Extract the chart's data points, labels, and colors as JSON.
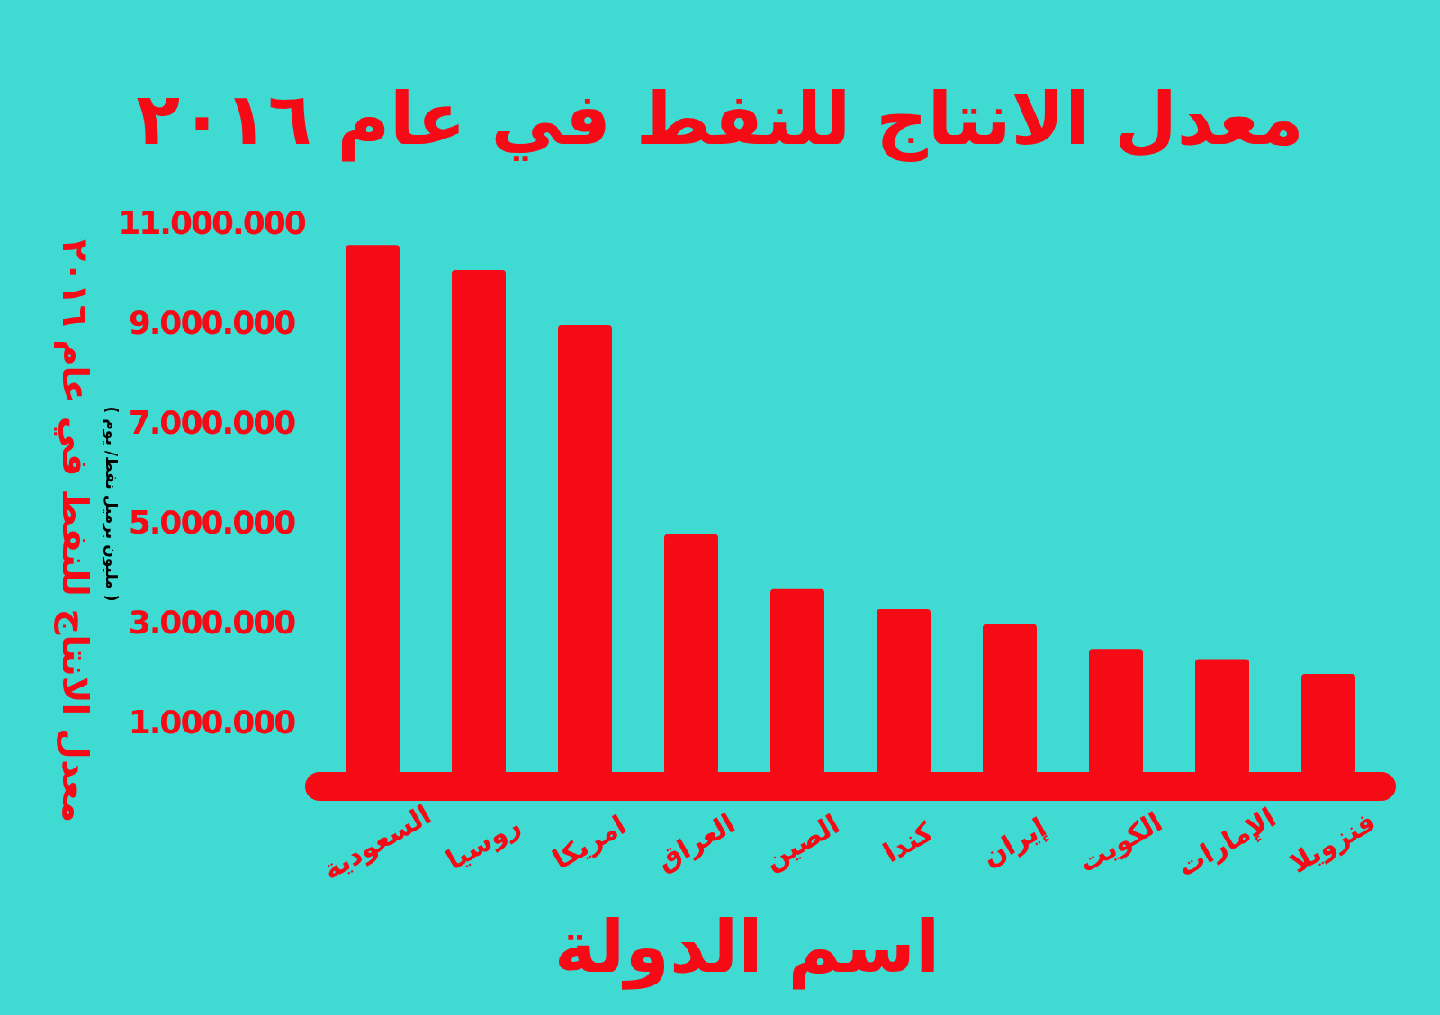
{
  "chart_data": {
    "type": "bar",
    "title": "معدل الانتاج للنفط في عام ٢٠١٦",
    "xlabel": "اسم الدولة",
    "ylabel": "معدل الانتاج للنفط في عام ٢٠١٦",
    "annotations": [
      "( مليون برميل نفط/ يوم )"
    ],
    "categories": [
      "السعودية",
      "روسيا",
      "امريكا",
      "العراق",
      "الصين",
      "كندا",
      "إيران",
      "الكويت",
      "الإمارات",
      "فنزويلا"
    ],
    "values": [
      10600000,
      10100000,
      9000000,
      4800000,
      3700000,
      3300000,
      3000000,
      2500000,
      2300000,
      2000000
    ],
    "color": "#f50a16",
    "ylim": [
      0,
      11000000
    ],
    "yticks": [
      {
        "value": 1000000,
        "label": "1.000.000"
      },
      {
        "value": 3000000,
        "label": "3.000.000"
      },
      {
        "value": 5000000,
        "label": "5.000.000"
      },
      {
        "value": 7000000,
        "label": "7.000.000"
      },
      {
        "value": 9000000,
        "label": "9.000.000"
      },
      {
        "value": 11000000,
        "label": "11.000.000"
      }
    ],
    "grid": false
  }
}
